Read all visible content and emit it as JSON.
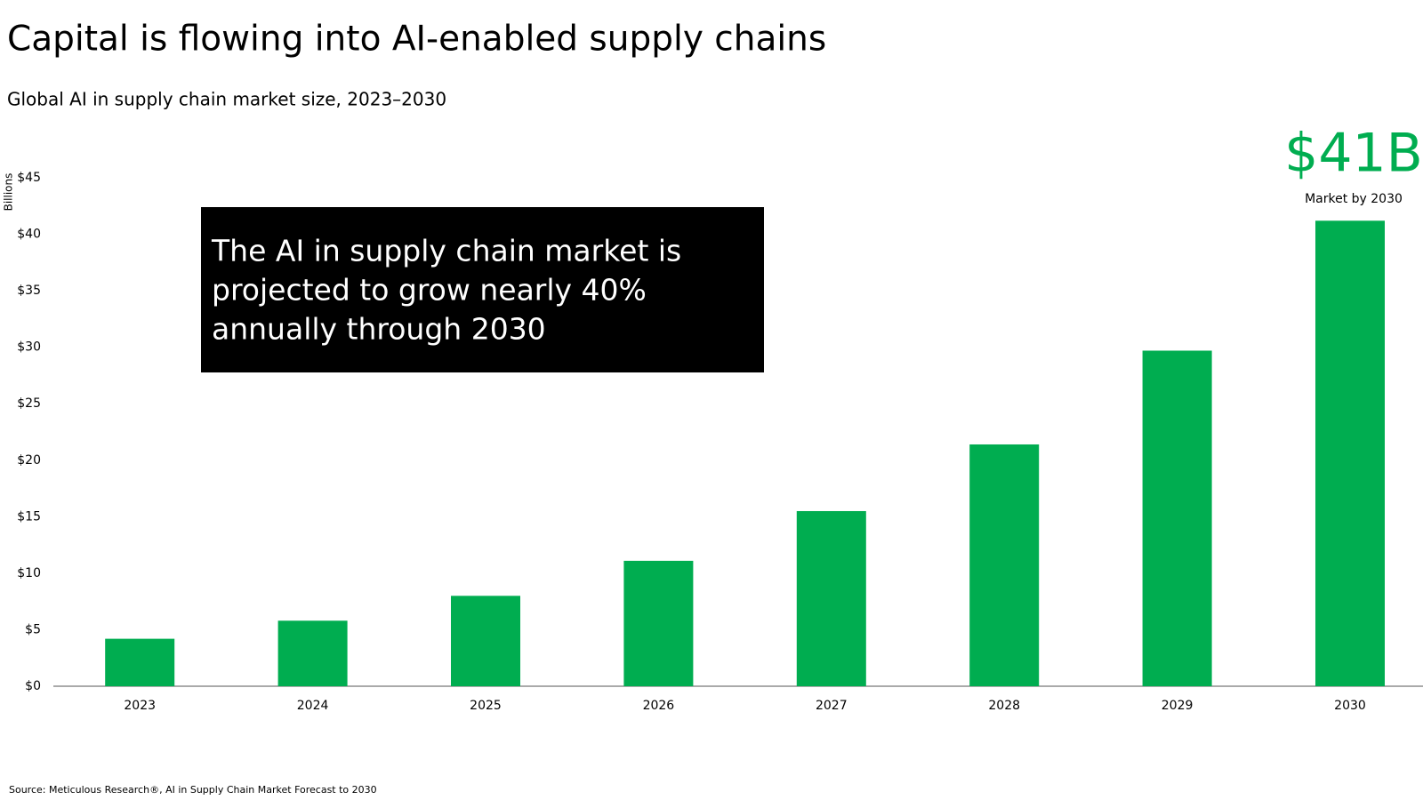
{
  "chart_data": {
    "type": "bar",
    "title": "Capital is flowing into AI-enabled supply chains",
    "subtitle": "Global AI in supply chain market size, 2023–2030",
    "y_axis_label": "Billions",
    "annotation": [
      "The AI in supply chain market is",
      "projected to grow nearly 40%",
      "annually through 2030"
    ],
    "callout": {
      "value": "$41B",
      "label": "Market by 2030"
    },
    "source": "Source: Meticulous Research®, AI in Supply Chain Market Forecast to 2030",
    "categories": [
      "2023",
      "2024",
      "2025",
      "2026",
      "2027",
      "2028",
      "2029",
      "2030"
    ],
    "values": [
      4.2,
      5.8,
      8.0,
      11.1,
      15.5,
      21.4,
      29.7,
      41.2
    ],
    "color": "#00ad50",
    "ylim": [
      0,
      45
    ],
    "yticks": [
      {
        "value": 0,
        "label": "$0"
      },
      {
        "value": 5,
        "label": "$5"
      },
      {
        "value": 10,
        "label": "$10"
      },
      {
        "value": 15,
        "label": "$15"
      },
      {
        "value": 20,
        "label": "$20"
      },
      {
        "value": 25,
        "label": "$25"
      },
      {
        "value": 30,
        "label": "$30"
      },
      {
        "value": 35,
        "label": "$35"
      },
      {
        "value": 40,
        "label": "$40"
      },
      {
        "value": 45,
        "label": "$45"
      }
    ],
    "grid": false
  }
}
